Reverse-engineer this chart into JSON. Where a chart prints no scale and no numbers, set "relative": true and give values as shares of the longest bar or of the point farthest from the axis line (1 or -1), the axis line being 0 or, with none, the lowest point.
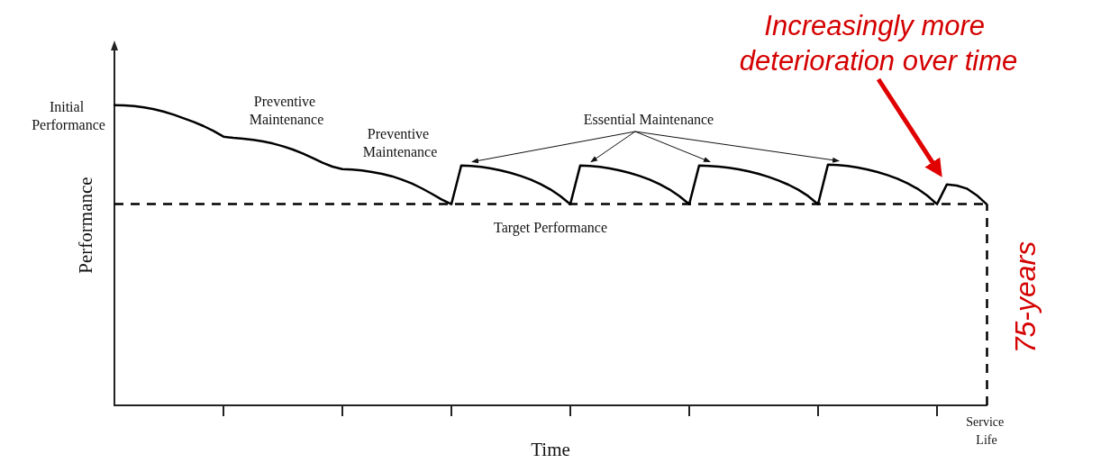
{
  "chart_data": {
    "type": "line",
    "relative": true,
    "xlabel": "Time",
    "ylabel": "Performance",
    "marker": "none",
    "categories": [
      null,
      null,
      null,
      null,
      null,
      null,
      null,
      null,
      null,
      null,
      null,
      null,
      null,
      null,
      null,
      null,
      null,
      null,
      null,
      null,
      null,
      null,
      null,
      null,
      null,
      null,
      null,
      null,
      null,
      null,
      null,
      null,
      null,
      null,
      null,
      null,
      null,
      null,
      null,
      null,
      null,
      null,
      null,
      null,
      null,
      null,
      null,
      null,
      null,
      null,
      null,
      null,
      null,
      null,
      null,
      null,
      null,
      null,
      null,
      null,
      null,
      null,
      null,
      null,
      null,
      null,
      null,
      null,
      null,
      null,
      null,
      null,
      null,
      null,
      null,
      null,
      null,
      null,
      null,
      null,
      null,
      null,
      null,
      null,
      null,
      null,
      null,
      null,
      null
    ],
    "series": [
      {
        "color": "#000000",
        "line_style": "solid",
        "values": [
          1,
          0.999,
          0.997,
          0.992,
          0.986,
          0.978,
          0.968,
          0.956,
          0.944,
          0.93,
          0.914,
          0.895,
          0.891,
          0.888,
          0.884,
          0.879,
          0.872,
          0.863,
          0.852,
          0.839,
          0.824,
          0.808,
          0.795,
          0.787,
          0.785,
          0.782,
          0.777,
          0.771,
          0.763,
          0.752,
          0.739,
          0.723,
          0.705,
          0.686,
          0.67,
          0.799,
          0.797,
          0.794,
          0.789,
          0.782,
          0.774,
          0.764,
          0.752,
          0.737,
          0.719,
          0.697,
          0.67,
          0.799,
          0.797,
          0.794,
          0.789,
          0.782,
          0.774,
          0.764,
          0.752,
          0.737,
          0.719,
          0.697,
          0.67,
          0.799,
          0.797,
          0.795,
          0.791,
          0.786,
          0.779,
          0.771,
          0.761,
          0.749,
          0.735,
          0.718,
          0.697,
          0.67,
          0.802,
          0.8,
          0.797,
          0.792,
          0.785,
          0.777,
          0.767,
          0.755,
          0.74,
          0.722,
          0.699,
          0.67,
          0.736,
          0.732,
          0.722,
          0.7,
          0.67
        ]
      }
    ],
    "ref_lines": [
      {
        "axis": "y",
        "value": 0.67,
        "label": "Target Performance",
        "color": "#000000",
        "line_style": "dashed"
      },
      {
        "axis": "x",
        "value": null,
        "label": "Service Life",
        "color": "#000000",
        "line_style": "dashed"
      }
    ],
    "annotations": [
      "Initial Performance",
      "Preventive Maintenance",
      "Preventive Maintenance",
      "Essential Maintenance",
      "Increasingly more deterioration over time",
      "75-years"
    ]
  }
}
